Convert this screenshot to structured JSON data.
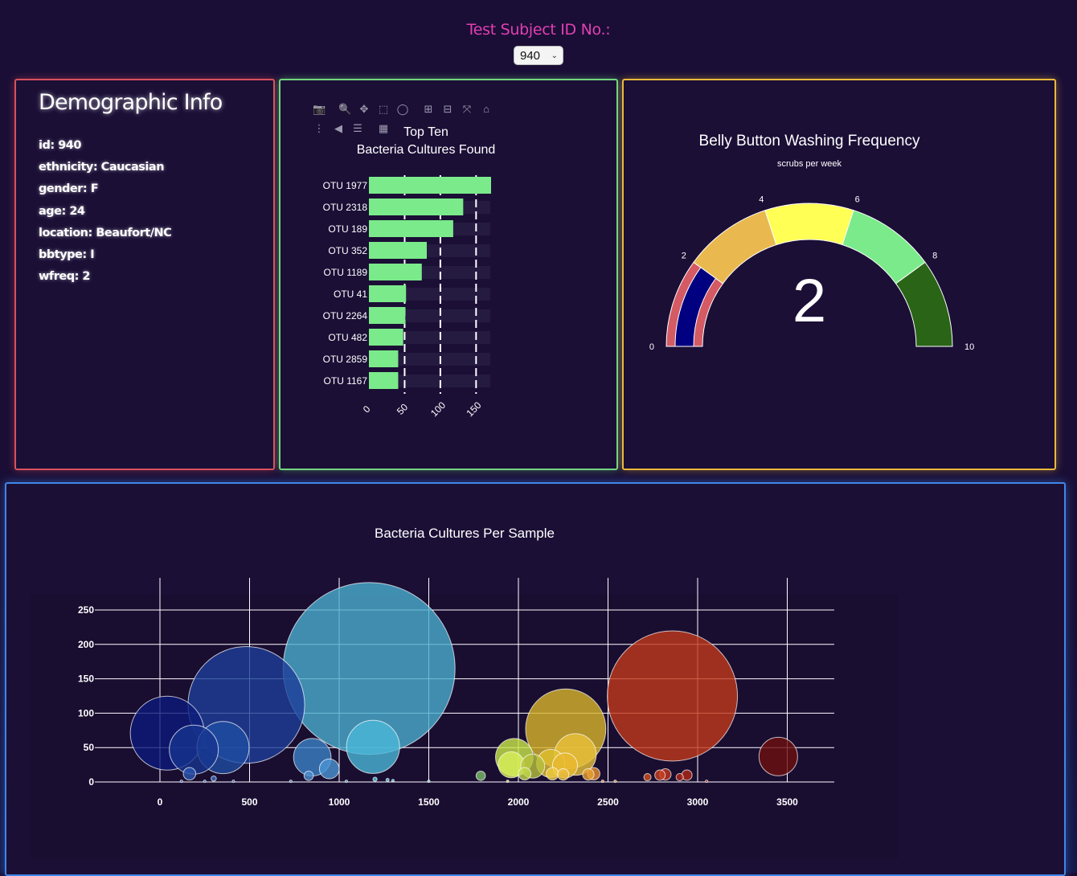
{
  "header": {
    "label": "Test Subject ID No.:",
    "selected_id": "940"
  },
  "demographics": {
    "title": "Demographic Info",
    "items": [
      "id: 940",
      "ethnicity: Caucasian",
      "gender: F",
      "age: 24",
      "location: Beaufort/NC",
      "bbtype: I",
      "wfreq: 2"
    ]
  },
  "bar_chart": {
    "toolbar": [
      "camera-icon",
      "zoom-icon",
      "pan-icon",
      "box-select-icon",
      "lasso-icon",
      "zoom-in-icon",
      "zoom-out-icon",
      "autoscale-icon",
      "reset-axes-icon",
      "spike-lines-icon",
      "hover-closest-icon",
      "hover-compare-icon",
      "plotly-logo-icon"
    ]
  },
  "gauge": {
    "title": "Belly Button Washing Frequency",
    "subtitle": "scrubs per week",
    "value_label": "2"
  },
  "colors": {
    "bar": "#7bea8a",
    "demo_border": "#d9515c",
    "bar_border": "#73d67f",
    "gauge_border": "#e9b93a",
    "bubble_border": "#3f86e8",
    "header_label": "#e33fb1"
  },
  "chart_data": [
    {
      "type": "bar",
      "orientation": "horizontal",
      "title": "Top Ten Bacteria Cultures Found",
      "categories": [
        "OTU 1977",
        "OTU 2318",
        "OTU 189",
        "OTU 352",
        "OTU 1189",
        "OTU 41",
        "OTU 2264",
        "OTU 482",
        "OTU 2859",
        "OTU 1167"
      ],
      "values": [
        171,
        132,
        118,
        81,
        74,
        52,
        51,
        48,
        41,
        41
      ],
      "xticks": [
        0,
        50,
        100,
        150
      ],
      "xlim": [
        0,
        180
      ],
      "grid": "dashed vertical"
    },
    {
      "type": "gauge",
      "title": "Belly Button Washing Frequency",
      "subtitle": "scrubs per week",
      "value": 2,
      "range": [
        0,
        10
      ],
      "ticks": [
        0,
        2,
        4,
        6,
        8,
        10
      ],
      "steps": [
        {
          "range": [
            0,
            2
          ],
          "color": "#d45a64"
        },
        {
          "range": [
            2,
            4
          ],
          "color": "#e9b94f"
        },
        {
          "range": [
            4,
            6
          ],
          "color": "#ffff55"
        },
        {
          "range": [
            6,
            8
          ],
          "color": "#7bea8a"
        },
        {
          "range": [
            8,
            10
          ],
          "color": "#2a6417"
        }
      ],
      "bar_color": "#000080"
    },
    {
      "type": "scatter",
      "title": "Bacteria Cultures Per Sample",
      "xlim": [
        -400,
        3750
      ],
      "ylim": [
        -10,
        300
      ],
      "xticks": [
        0,
        500,
        1000,
        1500,
        2000,
        2500,
        3000,
        3500
      ],
      "yticks": [
        0,
        50,
        100,
        150,
        200,
        250
      ],
      "grid": true,
      "points": [
        {
          "x": 41,
          "y": 71,
          "color": "#0b1a7a"
        },
        {
          "x": 189,
          "y": 47,
          "color": "#17348f"
        },
        {
          "x": 352,
          "y": 50,
          "color": "#1f4ea2"
        },
        {
          "x": 482,
          "y": 112,
          "color": "#1d3f98"
        },
        {
          "x": 165,
          "y": 12,
          "color": "#2a55b0"
        },
        {
          "x": 300,
          "y": 5,
          "color": "#3a6ac0"
        },
        {
          "x": 850,
          "y": 36,
          "color": "#3c82c8"
        },
        {
          "x": 945,
          "y": 19,
          "color": "#4b95d4"
        },
        {
          "x": 830,
          "y": 9,
          "color": "#4e8fd0"
        },
        {
          "x": 1167,
          "y": 165,
          "color": "#4aaed0"
        },
        {
          "x": 1189,
          "y": 51,
          "color": "#4ab8d8"
        },
        {
          "x": 1200,
          "y": 4,
          "color": "#55c2de"
        },
        {
          "x": 1270,
          "y": 3,
          "color": "#5fc8e0"
        },
        {
          "x": 1790,
          "y": 9,
          "color": "#7bbf6a"
        },
        {
          "x": 1977,
          "y": 36,
          "color": "#c9e84a"
        },
        {
          "x": 1960,
          "y": 25,
          "color": "#d8f05a"
        },
        {
          "x": 2035,
          "y": 12,
          "color": "#c0d848"
        },
        {
          "x": 2080,
          "y": 23,
          "color": "#b8c23e"
        },
        {
          "x": 2264,
          "y": 77,
          "color": "#d8b52c"
        },
        {
          "x": 2318,
          "y": 40,
          "color": "#e8c23a"
        },
        {
          "x": 2180,
          "y": 27,
          "color": "#e0c030"
        },
        {
          "x": 2260,
          "y": 24,
          "color": "#e8b830"
        },
        {
          "x": 2190,
          "y": 12,
          "color": "#f0cc40"
        },
        {
          "x": 2250,
          "y": 11,
          "color": "#eec03e"
        },
        {
          "x": 2390,
          "y": 11,
          "color": "#e8a030"
        },
        {
          "x": 2420,
          "y": 12,
          "color": "#e89030"
        },
        {
          "x": 2859,
          "y": 125,
          "color": "#c03a1c"
        },
        {
          "x": 2720,
          "y": 7,
          "color": "#d05020"
        },
        {
          "x": 2790,
          "y": 10,
          "color": "#c84020"
        },
        {
          "x": 2820,
          "y": 11,
          "color": "#c03820"
        },
        {
          "x": 2900,
          "y": 7,
          "color": "#b02818"
        },
        {
          "x": 2940,
          "y": 10,
          "color": "#b02818"
        },
        {
          "x": 3450,
          "y": 37,
          "color": "#6e1010"
        },
        {
          "x": 120,
          "y": 1,
          "color": "#3a5ab8"
        },
        {
          "x": 250,
          "y": 1,
          "color": "#3a6ac0"
        },
        {
          "x": 410,
          "y": 1,
          "color": "#3a6ac0"
        },
        {
          "x": 730,
          "y": 1,
          "color": "#4a86c8"
        },
        {
          "x": 1040,
          "y": 1,
          "color": "#4aa0d0"
        },
        {
          "x": 1300,
          "y": 2,
          "color": "#5fc8e0"
        },
        {
          "x": 1500,
          "y": 1,
          "color": "#6fcfd8"
        },
        {
          "x": 1940,
          "y": 1,
          "color": "#c8e050"
        },
        {
          "x": 2470,
          "y": 1,
          "color": "#e8a030"
        },
        {
          "x": 2540,
          "y": 1,
          "color": "#e89030"
        },
        {
          "x": 3050,
          "y": 1,
          "color": "#b02818"
        }
      ]
    }
  ]
}
